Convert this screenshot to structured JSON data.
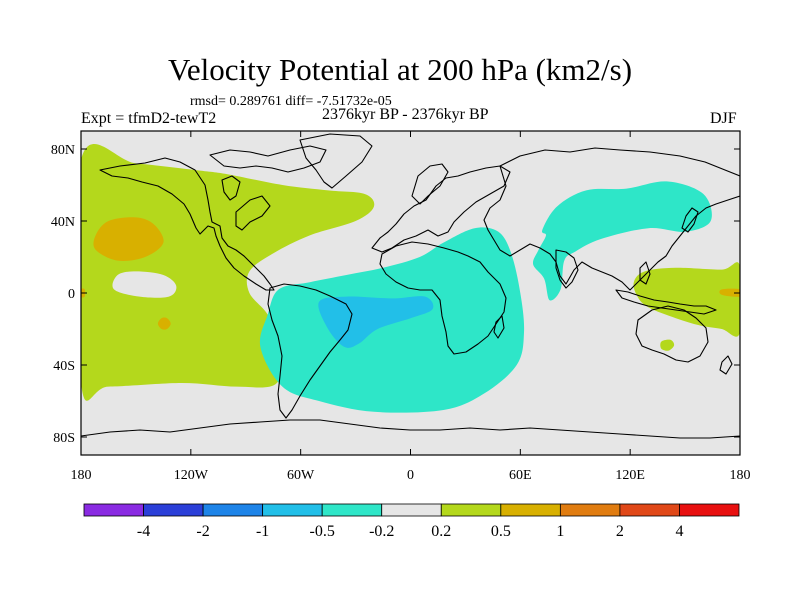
{
  "title": "Velocity Potential at 200 hPa (km2/s)",
  "stats": "rmsd= 0.289761  diff= -7.51732e-05",
  "expt": "Expt = tfmD2-tewT2",
  "period": "2376kyr BP - 2376kyr BP",
  "season": "DJF",
  "chart_data": {
    "type": "heatmap",
    "title": "Velocity Potential at 200 hPa (km2/s)",
    "xlabel": "",
    "ylabel": "",
    "xlim": [
      -180,
      180
    ],
    "ylim": [
      -90,
      90
    ],
    "x_ticks": [
      {
        "v": -180,
        "label": "180"
      },
      {
        "v": -120,
        "label": "120W"
      },
      {
        "v": -60,
        "label": "60W"
      },
      {
        "v": 0,
        "label": "0"
      },
      {
        "v": 60,
        "label": "60E"
      },
      {
        "v": 120,
        "label": "120E"
      },
      {
        "v": 180,
        "label": "180"
      }
    ],
    "y_ticks": [
      {
        "v": 80,
        "label": "80N"
      },
      {
        "v": 40,
        "label": "40N"
      },
      {
        "v": 0,
        "label": "0"
      },
      {
        "v": -40,
        "label": "40S"
      },
      {
        "v": -80,
        "label": "80S"
      }
    ],
    "colorbar": {
      "colors": [
        "#8a2be2",
        "#2b3fd8",
        "#1e84e8",
        "#22bfe8",
        "#2ee6c8",
        "#e6e6e6",
        "#b4d81c",
        "#d8b000",
        "#e07c10",
        "#e04818",
        "#e81010"
      ],
      "labels": [
        "-4",
        "-2",
        "-1",
        "-0.5",
        "-0.2",
        "0.2",
        "0.5",
        "1",
        "2",
        "4"
      ]
    },
    "regions": [
      {
        "name": "pacific-positive",
        "level": "0.2 to 0.5",
        "points": [
          [
            -180,
            74
          ],
          [
            -150,
            72
          ],
          [
            -115,
            68
          ],
          [
            -100,
            66
          ],
          [
            -70,
            60
          ],
          [
            -45,
            57
          ],
          [
            -25,
            55
          ],
          [
            -20,
            48
          ],
          [
            -30,
            40
          ],
          [
            -55,
            32
          ],
          [
            -75,
            22
          ],
          [
            -88,
            12
          ],
          [
            -88,
            0
          ],
          [
            -78,
            -12
          ],
          [
            -72,
            -28
          ],
          [
            -73,
            -50
          ],
          [
            -95,
            -52
          ],
          [
            -125,
            -50
          ],
          [
            -165,
            -52
          ],
          [
            -180,
            -50
          ]
        ]
      },
      {
        "name": "pacific-max-north",
        "level": "0.5 to 1",
        "points": [
          [
            -172,
            32
          ],
          [
            -165,
            40
          ],
          [
            -150,
            42
          ],
          [
            -140,
            38
          ],
          [
            -135,
            28
          ],
          [
            -145,
            20
          ],
          [
            -160,
            18
          ],
          [
            -172,
            24
          ]
        ]
      },
      {
        "name": "pacific-max-south",
        "level": "0.5 to 1",
        "points": [
          [
            -136,
            -14
          ],
          [
            -133,
            -14
          ],
          [
            -131,
            -17
          ],
          [
            -133,
            -20
          ],
          [
            -136,
            -20
          ],
          [
            -138,
            -17
          ]
        ]
      },
      {
        "name": "pacific-max-west-edge",
        "level": "0.5 to 1",
        "points": [
          [
            -180,
            2
          ],
          [
            -178,
            2
          ],
          [
            -178,
            -2
          ],
          [
            -180,
            -2
          ]
        ]
      },
      {
        "name": "pacific-neutral-hole",
        "level": "-0.2 to 0.2",
        "points": [
          [
            -160,
            10
          ],
          [
            -150,
            12
          ],
          [
            -135,
            10
          ],
          [
            -128,
            4
          ],
          [
            -132,
            -2
          ],
          [
            -148,
            -2
          ],
          [
            -162,
            2
          ]
        ]
      },
      {
        "name": "maritime-positive",
        "level": "0.2 to 0.5",
        "points": [
          [
            128,
            12
          ],
          [
            145,
            14
          ],
          [
            170,
            13
          ],
          [
            180,
            15
          ],
          [
            180,
            -22
          ],
          [
            170,
            -20
          ],
          [
            158,
            -18
          ],
          [
            145,
            -14
          ],
          [
            130,
            -8
          ],
          [
            124,
            -2
          ],
          [
            122,
            6
          ]
        ]
      },
      {
        "name": "maritime-max",
        "level": "0.5 to 1",
        "points": [
          [
            170,
            2
          ],
          [
            180,
            2
          ],
          [
            180,
            -2
          ],
          [
            170,
            -1
          ]
        ]
      },
      {
        "name": "australia-positive",
        "level": "0.2 to 0.5",
        "points": [
          [
            137,
            -27
          ],
          [
            142,
            -26
          ],
          [
            144,
            -29
          ],
          [
            141,
            -32
          ],
          [
            137,
            -31
          ]
        ]
      },
      {
        "name": "atlantic-negative",
        "level": "-0.5 to -0.2",
        "points": [
          [
            -72,
            2
          ],
          [
            -55,
            6
          ],
          [
            -35,
            10
          ],
          [
            -15,
            14
          ],
          [
            5,
            20
          ],
          [
            18,
            28
          ],
          [
            35,
            36
          ],
          [
            48,
            34
          ],
          [
            55,
            22
          ],
          [
            60,
            0
          ],
          [
            62,
            -22
          ],
          [
            58,
            -40
          ],
          [
            40,
            -56
          ],
          [
            18,
            -65
          ],
          [
            -20,
            -66
          ],
          [
            -50,
            -60
          ],
          [
            -70,
            -52
          ],
          [
            -82,
            -30
          ],
          [
            -78,
            -12
          ]
        ]
      },
      {
        "name": "atlantic-core",
        "level": "-1 to -0.5",
        "points": [
          [
            -50,
            -5
          ],
          [
            -35,
            -2
          ],
          [
            -10,
            -3
          ],
          [
            8,
            -2
          ],
          [
            12,
            -9
          ],
          [
            0,
            -14
          ],
          [
            -18,
            -20
          ],
          [
            -28,
            -28
          ],
          [
            -36,
            -30
          ],
          [
            -45,
            -20
          ]
        ]
      },
      {
        "name": "asia-negative",
        "level": "-0.5 to -0.2",
        "points": [
          [
            72,
            35
          ],
          [
            80,
            48
          ],
          [
            96,
            57
          ],
          [
            118,
            58
          ],
          [
            140,
            62
          ],
          [
            160,
            55
          ],
          [
            164,
            40
          ],
          [
            150,
            34
          ],
          [
            130,
            36
          ],
          [
            104,
            30
          ],
          [
            90,
            23
          ],
          [
            84,
            18
          ],
          [
            82,
            2
          ],
          [
            76,
            -4
          ],
          [
            73,
            8
          ],
          [
            67,
            16
          ],
          [
            70,
            24
          ],
          [
            74,
            32
          ]
        ]
      }
    ]
  }
}
